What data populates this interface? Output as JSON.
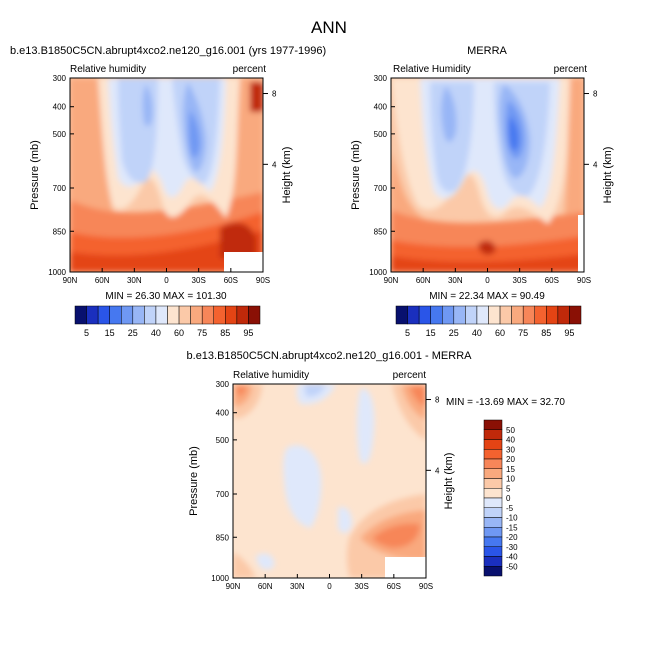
{
  "figure": {
    "title": "ANN"
  },
  "chart_data": [
    {
      "type": "contour",
      "id": "model",
      "title": "b.e13.B1850C5CN.abrupt4xco2.ne120_g16.001 (yrs 1977-1996)",
      "left_label": "Relative humidity",
      "right_label": "percent",
      "ylabel": "Pressure (mb)",
      "y2label": "Height (km)",
      "xticks": [
        "90N",
        "60N",
        "30N",
        "0",
        "30S",
        "60S",
        "90S"
      ],
      "yticks": [
        "300",
        "400",
        "500",
        "700",
        "850",
        "1000"
      ],
      "y2ticks": [
        "8",
        "4"
      ],
      "stats": "MIN = 26.30  MAX = 101.30",
      "min": 26.3,
      "max": 101.3
    },
    {
      "type": "contour",
      "id": "obs",
      "title": "MERRA",
      "left_label": "Relative Humidity",
      "right_label": "percent",
      "ylabel": "Pressure (mb)",
      "y2label": "Height (km)",
      "xticks": [
        "90N",
        "60N",
        "30N",
        "0",
        "30S",
        "60S",
        "90S"
      ],
      "yticks": [
        "300",
        "400",
        "500",
        "700",
        "850",
        "1000"
      ],
      "y2ticks": [
        "8",
        "4"
      ],
      "stats": "MIN = 22.34  MAX = 90.49",
      "min": 22.34,
      "max": 90.49
    },
    {
      "type": "contour",
      "id": "diff",
      "title": "b.e13.B1850C5CN.abrupt4xco2.ne120_g16.001 - MERRA",
      "left_label": "Relative humidity",
      "right_label": "percent",
      "ylabel": "Pressure (mb)",
      "y2label": "Height (km)",
      "xticks": [
        "90N",
        "60N",
        "30N",
        "0",
        "30S",
        "60S",
        "90S"
      ],
      "yticks": [
        "300",
        "400",
        "500",
        "700",
        "850",
        "1000"
      ],
      "y2ticks": [
        "8",
        "4"
      ],
      "stats": "MIN = -13.69  MAX = 32.70",
      "min": -13.69,
      "max": 32.7
    }
  ],
  "colorbars": {
    "abs": {
      "labels": [
        "5",
        "15",
        "25",
        "40",
        "60",
        "75",
        "85",
        "95"
      ],
      "colors": [
        "#08106e",
        "#1a2fbe",
        "#2a55e8",
        "#4678f0",
        "#6f98f3",
        "#98b6f6",
        "#c0d3f9",
        "#dfe8fb",
        "#fde4cf",
        "#fbc9a8",
        "#f9a97e",
        "#f78659",
        "#f4622f",
        "#e44414",
        "#c0290a",
        "#8a1005"
      ]
    },
    "diff": {
      "labels": [
        "50",
        "40",
        "30",
        "20",
        "15",
        "10",
        "5",
        "0",
        "-5",
        "-10",
        "-15",
        "-20",
        "-30",
        "-40",
        "-50"
      ],
      "colors": [
        "#8a1005",
        "#c0290a",
        "#e44414",
        "#f4622f",
        "#f78659",
        "#f9a97e",
        "#fbc9a8",
        "#fde4cf",
        "#dfe8fb",
        "#c0d3f9",
        "#98b6f6",
        "#6f98f3",
        "#4678f0",
        "#2a55e8",
        "#1a2fbe",
        "#08106e"
      ]
    }
  },
  "field_colors": {
    "cream": "#fde4cf",
    "peach": "#fbc9a8",
    "salmon": "#f9a97e",
    "orange": "#f78659",
    "red_orange": "#f4622f",
    "red": "#e44414",
    "dark_red": "#c0290a",
    "very_light_blue": "#dfe8fb",
    "light_blue": "#c0d3f9",
    "mid_blue": "#98b6f6",
    "blue": "#6f98f3",
    "deep_blue": "#4678f0"
  }
}
